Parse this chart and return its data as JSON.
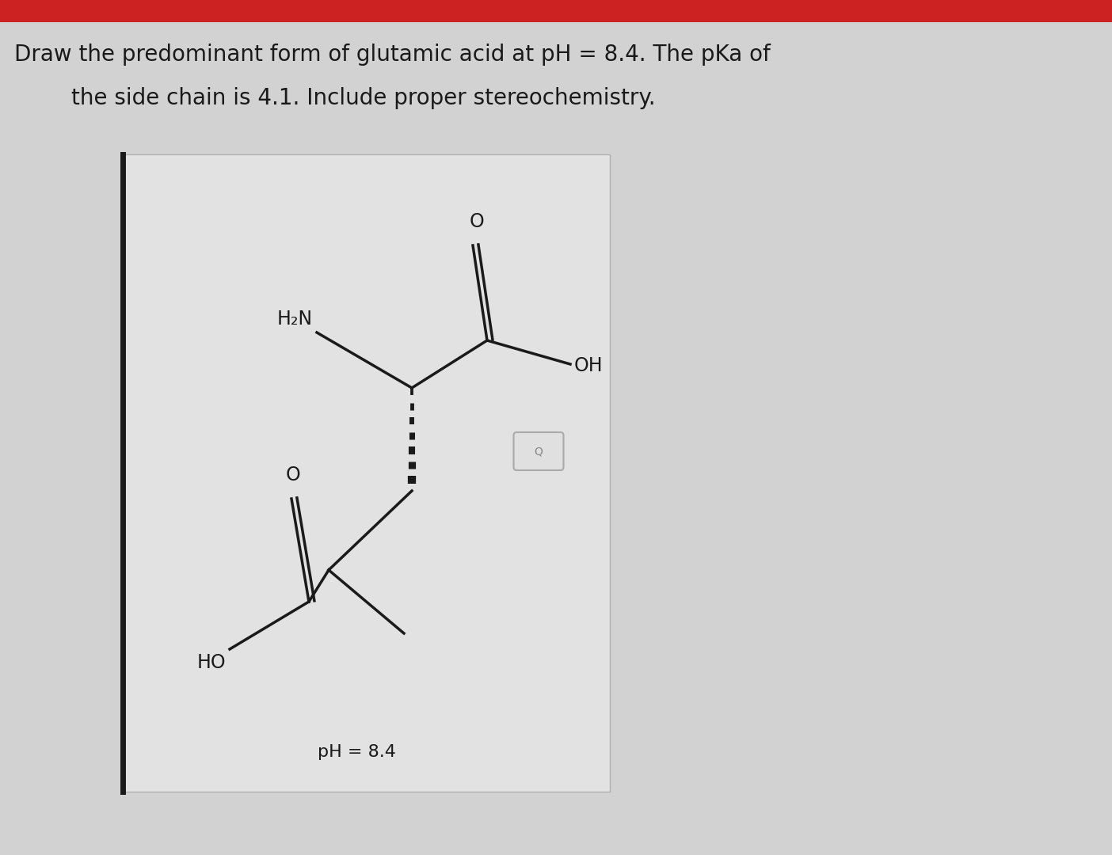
{
  "title_line1": "Draw the predominant form of glutamic acid at pH = 8.4. The pKa of",
  "title_line2": "the side chain is 4.1. Include proper stereochemistry.",
  "bg_color": "#d2d2d2",
  "box_color": "#e0e0e0",
  "bond_color": "#1a1a1a",
  "text_color": "#1a1a1a",
  "red_bar_color": "#cc2222",
  "ph_label": "pH = 8.4",
  "label_H2N": "H₂N",
  "label_OH_alpha": "OH",
  "label_O_alpha": "O",
  "label_O_side": "O",
  "label_HO_side": "HO",
  "title_fontsize": 20,
  "label_fontsize": 17,
  "ph_fontsize": 16,
  "mag_box_color": "#e8e8e8",
  "mag_box_border": "#aaaaaa"
}
